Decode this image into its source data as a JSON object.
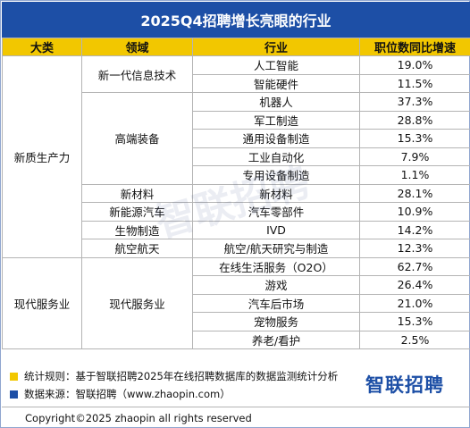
{
  "title": "2025Q4招聘增长亮眼的行业",
  "headers": [
    "大类",
    "领域",
    "行业",
    "职位数同比增速"
  ],
  "categories": [
    {
      "name": "新质生产力",
      "fields": [
        {
          "name": "新一代信息技术",
          "rows": [
            {
              "industry": "人工智能",
              "growth": "19.0%"
            },
            {
              "industry": "智能硬件",
              "growth": "11.5%"
            }
          ]
        },
        {
          "name": "高端装备",
          "rows": [
            {
              "industry": "机器人",
              "growth": "37.3%"
            },
            {
              "industry": "军工制造",
              "growth": "28.8%"
            },
            {
              "industry": "通用设备制造",
              "growth": "15.3%"
            },
            {
              "industry": "工业自动化",
              "growth": "7.9%"
            },
            {
              "industry": "专用设备制造",
              "growth": "1.1%"
            }
          ]
        },
        {
          "name": "新材料",
          "rows": [
            {
              "industry": "新材料",
              "growth": "28.1%"
            }
          ]
        },
        {
          "name": "新能源汽车",
          "rows": [
            {
              "industry": "汽车零部件",
              "growth": "10.9%"
            }
          ]
        },
        {
          "name": "生物制造",
          "rows": [
            {
              "industry": "IVD",
              "growth": "14.2%"
            }
          ]
        },
        {
          "name": "航空航天",
          "rows": [
            {
              "industry": "航空/航天研究与制造",
              "growth": "12.3%"
            }
          ]
        }
      ]
    },
    {
      "name": "现代服务业",
      "fields": [
        {
          "name": "现代服务业",
          "rows": [
            {
              "industry": "在线生活服务（O2O）",
              "growth": "62.7%"
            },
            {
              "industry": "游戏",
              "growth": "26.4%"
            },
            {
              "industry": "汽车后市场",
              "growth": "21.0%"
            },
            {
              "industry": "宠物服务",
              "growth": "15.3%"
            },
            {
              "industry": "养老/看护",
              "growth": "2.5%"
            }
          ]
        }
      ]
    }
  ],
  "watermark": "智联招聘",
  "notes": {
    "method": "统计规则：基于智联招聘2025年在线招聘数据库的数据监测统计分析",
    "source": "数据来源：智联招聘（www.zhaopin.com）"
  },
  "logo": "智联招聘",
  "copyright": "Copyright©2025 zhaopin all rights reserved",
  "colors": {
    "header_blue": "#1d4fa6",
    "header_yellow": "#f2c700"
  }
}
